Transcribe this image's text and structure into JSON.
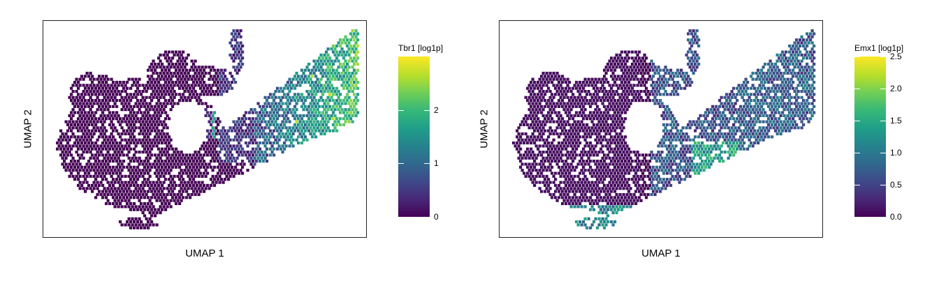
{
  "chart_data": [
    {
      "type": "heatmap",
      "subtype": "umap-hexbin-scatter",
      "title": "",
      "xlabel": "UMAP 1",
      "ylabel": "UMAP 2",
      "colorbar": {
        "title": "Tbr1 [log1p]",
        "colormap": "viridis",
        "range": [
          0,
          3.0
        ],
        "ticks": [
          0,
          1,
          2
        ],
        "tick_labels": [
          "0",
          "1",
          "2"
        ]
      },
      "expression_pattern": "low in most cells; moderate expression (~1-2) in upper-right lobe, a few hot spots up to ~2.8"
    },
    {
      "type": "heatmap",
      "subtype": "umap-hexbin-scatter",
      "title": "",
      "xlabel": "UMAP 1",
      "ylabel": "UMAP 2",
      "colorbar": {
        "title": "Emx1 [log1p]",
        "colormap": "viridis",
        "range": [
          0,
          2.5
        ],
        "ticks": [
          0.0,
          0.5,
          1.0,
          1.5,
          2.0,
          2.5
        ],
        "tick_labels": [
          "0.0",
          "0.5",
          "1.0",
          "1.5",
          "2.0",
          "2.5"
        ]
      },
      "expression_pattern": "low in left cluster; moderate (~1) along the diagonal arm and upper-right lobe, higher (~1.5-2) in mid-arm band"
    }
  ],
  "colors": {
    "viridis_low": "#440154",
    "viridis_mid": "#21918c",
    "viridis_high": "#fde725",
    "frame": "#222222"
  }
}
